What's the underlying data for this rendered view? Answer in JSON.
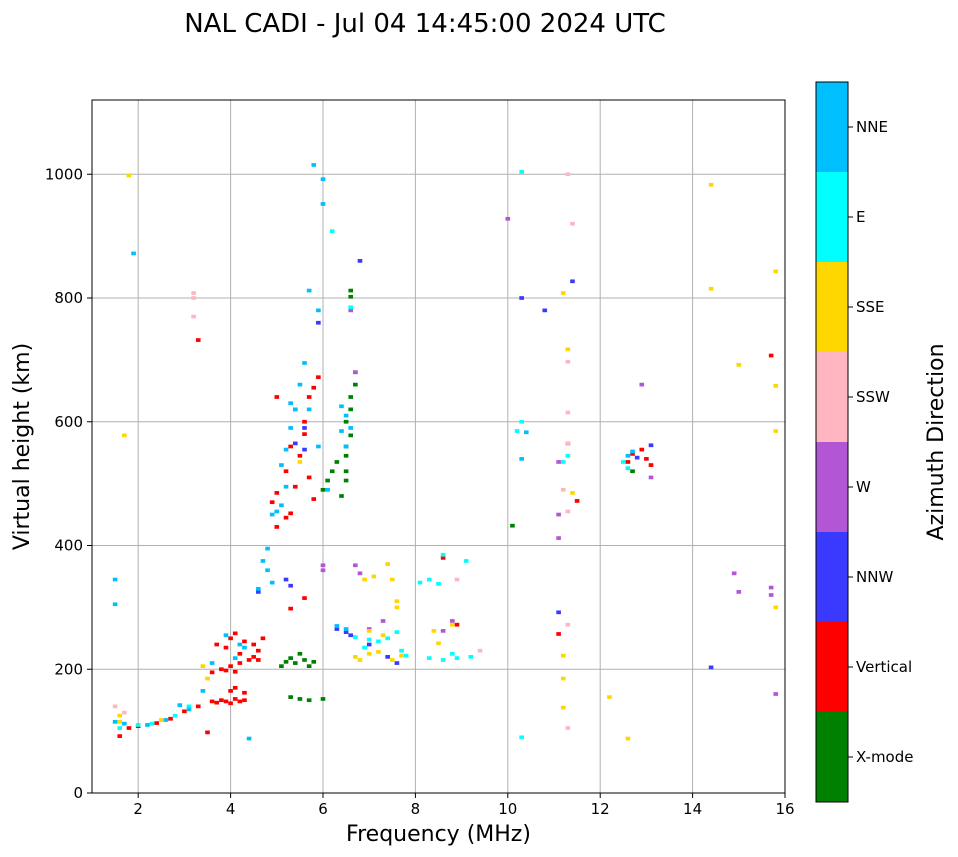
{
  "chart_data": {
    "type": "scatter",
    "title": "NAL CADI - Jul 04 14:45:00 2024 UTC",
    "xlabel": "Frequency (MHz)",
    "ylabel": "Virtual height (km)",
    "xlim": [
      1,
      16
    ],
    "ylim": [
      0,
      1120
    ],
    "xticks": [
      2,
      4,
      6,
      8,
      10,
      12,
      14,
      16
    ],
    "yticks": [
      0,
      200,
      400,
      600,
      800,
      1000
    ],
    "grid": true,
    "colorbar": {
      "label": "Azimuth Direction",
      "categories": [
        {
          "name": "X-mode",
          "color": "#008000"
        },
        {
          "name": "Vertical",
          "color": "#ff0000"
        },
        {
          "name": "NNW",
          "color": "#3a3aff"
        },
        {
          "name": "W",
          "color": "#b356d6"
        },
        {
          "name": "SSW",
          "color": "#ffb6c1"
        },
        {
          "name": "SSE",
          "color": "#ffd700"
        },
        {
          "name": "E",
          "color": "#00ffff"
        },
        {
          "name": "NNE",
          "color": "#00bfff"
        }
      ]
    },
    "bin_width_mhz": 0.1,
    "bin_height_km": 6,
    "series": [
      {
        "name": "Vertical",
        "points": [
          [
            1.6,
            92
          ],
          [
            1.8,
            105
          ],
          [
            2.0,
            108
          ],
          [
            2.4,
            113
          ],
          [
            2.7,
            120
          ],
          [
            3.0,
            132
          ],
          [
            3.3,
            140
          ],
          [
            3.5,
            98
          ],
          [
            3.6,
            148
          ],
          [
            3.7,
            146
          ],
          [
            3.8,
            150
          ],
          [
            3.9,
            148
          ],
          [
            4.0,
            145
          ],
          [
            4.1,
            152
          ],
          [
            4.2,
            148
          ],
          [
            4.3,
            150
          ],
          [
            4.0,
            165
          ],
          [
            4.1,
            170
          ],
          [
            4.3,
            162
          ],
          [
            3.6,
            195
          ],
          [
            3.8,
            200
          ],
          [
            3.9,
            198
          ],
          [
            4.0,
            205
          ],
          [
            4.1,
            196
          ],
          [
            4.2,
            210
          ],
          [
            4.4,
            215
          ],
          [
            4.5,
            220
          ],
          [
            4.6,
            215
          ],
          [
            4.2,
            225
          ],
          [
            3.7,
            240
          ],
          [
            3.9,
            235
          ],
          [
            4.0,
            250
          ],
          [
            4.1,
            258
          ],
          [
            4.3,
            245
          ],
          [
            4.5,
            240
          ],
          [
            4.6,
            230
          ],
          [
            4.7,
            250
          ],
          [
            5.3,
            298
          ],
          [
            5.6,
            315
          ],
          [
            5.0,
            430
          ],
          [
            5.2,
            445
          ],
          [
            5.3,
            452
          ],
          [
            4.9,
            470
          ],
          [
            5.0,
            485
          ],
          [
            5.4,
            495
          ],
          [
            5.2,
            520
          ],
          [
            5.3,
            560
          ],
          [
            5.5,
            545
          ],
          [
            5.6,
            600
          ],
          [
            5.4,
            620
          ],
          [
            5.7,
            640
          ],
          [
            5.0,
            640
          ],
          [
            5.8,
            655
          ],
          [
            5.9,
            672
          ],
          [
            5.6,
            580
          ],
          [
            5.7,
            510
          ],
          [
            5.8,
            475
          ],
          [
            8.6,
            380
          ],
          [
            8.9,
            272
          ],
          [
            11.1,
            257
          ],
          [
            11.5,
            472
          ],
          [
            11.3,
            565
          ],
          [
            12.6,
            535
          ],
          [
            12.7,
            548
          ],
          [
            12.9,
            555
          ],
          [
            13.0,
            540
          ],
          [
            13.1,
            530
          ],
          [
            15.7,
            707
          ],
          [
            3.3,
            732
          ]
        ]
      },
      {
        "name": "X-mode",
        "points": [
          [
            5.1,
            205
          ],
          [
            5.2,
            212
          ],
          [
            5.3,
            218
          ],
          [
            5.4,
            210
          ],
          [
            5.5,
            225
          ],
          [
            5.6,
            215
          ],
          [
            5.7,
            205
          ],
          [
            5.8,
            212
          ],
          [
            5.3,
            155
          ],
          [
            5.5,
            152
          ],
          [
            5.7,
            150
          ],
          [
            6.0,
            152
          ],
          [
            6.5,
            505
          ],
          [
            6.5,
            520
          ],
          [
            6.5,
            545
          ],
          [
            6.5,
            560
          ],
          [
            6.6,
            578
          ],
          [
            6.5,
            600
          ],
          [
            6.6,
            620
          ],
          [
            6.0,
            490
          ],
          [
            6.1,
            505
          ],
          [
            6.2,
            520
          ],
          [
            6.3,
            535
          ],
          [
            6.4,
            480
          ],
          [
            6.6,
            640
          ],
          [
            6.7,
            660
          ],
          [
            6.7,
            680
          ],
          [
            6.6,
            812
          ],
          [
            6.6,
            802
          ],
          [
            10.1,
            432
          ],
          [
            12.7,
            520
          ]
        ]
      },
      {
        "name": "NNW",
        "points": [
          [
            5.6,
            555
          ],
          [
            5.9,
            760
          ],
          [
            6.8,
            860
          ],
          [
            5.2,
            345
          ],
          [
            5.3,
            335
          ],
          [
            4.6,
            325
          ],
          [
            6.3,
            265
          ],
          [
            6.5,
            260
          ],
          [
            6.6,
            255
          ],
          [
            7.0,
            240
          ],
          [
            7.4,
            220
          ],
          [
            7.6,
            210
          ],
          [
            10.3,
            800
          ],
          [
            10.8,
            780
          ],
          [
            11.4,
            827
          ],
          [
            11.1,
            292
          ],
          [
            13.1,
            562
          ],
          [
            12.8,
            542
          ],
          [
            14.4,
            203
          ],
          [
            5.4,
            565
          ],
          [
            5.6,
            590
          ]
        ]
      },
      {
        "name": "W",
        "points": [
          [
            6.0,
            360
          ],
          [
            6.0,
            368
          ],
          [
            6.7,
            368
          ],
          [
            6.8,
            355
          ],
          [
            7.0,
            265
          ],
          [
            7.3,
            278
          ],
          [
            8.8,
            278
          ],
          [
            8.6,
            262
          ],
          [
            12.9,
            660
          ],
          [
            13.1,
            510
          ],
          [
            14.9,
            355
          ],
          [
            15.0,
            325
          ],
          [
            15.7,
            332
          ],
          [
            15.7,
            320
          ],
          [
            15.8,
            160
          ],
          [
            10.0,
            928
          ],
          [
            11.1,
            535
          ],
          [
            11.1,
            450
          ],
          [
            11.1,
            412
          ],
          [
            6.7,
            680
          ],
          [
            6.6,
            780
          ]
        ]
      },
      {
        "name": "SSW",
        "points": [
          [
            3.2,
            808
          ],
          [
            3.2,
            800
          ],
          [
            3.2,
            770
          ],
          [
            1.5,
            140
          ],
          [
            1.7,
            130
          ],
          [
            11.3,
            1000
          ],
          [
            11.4,
            920
          ],
          [
            11.2,
            490
          ],
          [
            11.3,
            455
          ],
          [
            11.3,
            565
          ],
          [
            11.3,
            615
          ],
          [
            11.3,
            697
          ],
          [
            8.9,
            345
          ],
          [
            9.4,
            230
          ],
          [
            11.3,
            272
          ],
          [
            11.3,
            105
          ]
        ]
      },
      {
        "name": "SSE",
        "points": [
          [
            1.6,
            125
          ],
          [
            1.6,
            115
          ],
          [
            1.8,
            998
          ],
          [
            1.7,
            578
          ],
          [
            6.9,
            345
          ],
          [
            7.1,
            350
          ],
          [
            7.4,
            370
          ],
          [
            7.5,
            345
          ],
          [
            6.7,
            220
          ],
          [
            6.8,
            215
          ],
          [
            7.0,
            225
          ],
          [
            7.2,
            228
          ],
          [
            7.5,
            215
          ],
          [
            7.7,
            222
          ],
          [
            7.0,
            262
          ],
          [
            7.3,
            255
          ],
          [
            7.6,
            300
          ],
          [
            7.6,
            310
          ],
          [
            8.4,
            262
          ],
          [
            8.5,
            242
          ],
          [
            8.8,
            272
          ],
          [
            11.2,
            808
          ],
          [
            11.3,
            717
          ],
          [
            11.3,
            545
          ],
          [
            11.4,
            485
          ],
          [
            11.2,
            222
          ],
          [
            11.2,
            185
          ],
          [
            11.2,
            138
          ],
          [
            12.2,
            155
          ],
          [
            12.6,
            88
          ],
          [
            14.4,
            983
          ],
          [
            14.4,
            815
          ],
          [
            15.0,
            692
          ],
          [
            15.8,
            843
          ],
          [
            15.8,
            658
          ],
          [
            15.8,
            585
          ],
          [
            15.8,
            300
          ],
          [
            2.5,
            118
          ],
          [
            3.4,
            205
          ],
          [
            3.5,
            185
          ],
          [
            5.5,
            535
          ]
        ]
      },
      {
        "name": "E",
        "points": [
          [
            6.7,
            252
          ],
          [
            6.9,
            235
          ],
          [
            7.0,
            248
          ],
          [
            7.2,
            245
          ],
          [
            7.4,
            250
          ],
          [
            7.6,
            260
          ],
          [
            7.7,
            230
          ],
          [
            8.1,
            340
          ],
          [
            8.3,
            345
          ],
          [
            8.5,
            338
          ],
          [
            8.8,
            225
          ],
          [
            8.6,
            215
          ],
          [
            8.3,
            218
          ],
          [
            8.9,
            218
          ],
          [
            9.2,
            220
          ],
          [
            7.8,
            222
          ],
          [
            8.6,
            385
          ],
          [
            9.1,
            375
          ],
          [
            10.2,
            585
          ],
          [
            10.3,
            600
          ],
          [
            10.3,
            1004
          ],
          [
            10.3,
            90
          ],
          [
            11.3,
            545
          ],
          [
            11.2,
            535
          ],
          [
            12.5,
            535
          ],
          [
            12.6,
            525
          ],
          [
            1.6,
            105
          ],
          [
            2.0,
            110
          ],
          [
            2.3,
            112
          ],
          [
            2.8,
            125
          ],
          [
            3.1,
            140
          ],
          [
            6.6,
            785
          ],
          [
            6.2,
            908
          ]
        ]
      },
      {
        "name": "NNE",
        "points": [
          [
            1.5,
            345
          ],
          [
            1.5,
            305
          ],
          [
            1.5,
            115
          ],
          [
            1.7,
            112
          ],
          [
            1.9,
            872
          ],
          [
            2.2,
            110
          ],
          [
            2.6,
            118
          ],
          [
            2.9,
            142
          ],
          [
            3.1,
            135
          ],
          [
            3.4,
            165
          ],
          [
            3.6,
            210
          ],
          [
            3.9,
            255
          ],
          [
            4.1,
            218
          ],
          [
            4.2,
            240
          ],
          [
            4.3,
            235
          ],
          [
            4.4,
            88
          ],
          [
            4.6,
            330
          ],
          [
            4.7,
            375
          ],
          [
            4.8,
            395
          ],
          [
            4.8,
            360
          ],
          [
            4.9,
            450
          ],
          [
            5.0,
            455
          ],
          [
            5.1,
            465
          ],
          [
            5.2,
            495
          ],
          [
            5.1,
            530
          ],
          [
            5.2,
            555
          ],
          [
            5.3,
            590
          ],
          [
            5.4,
            620
          ],
          [
            5.3,
            630
          ],
          [
            5.5,
            660
          ],
          [
            5.6,
            695
          ],
          [
            5.7,
            812
          ],
          [
            5.8,
            1015
          ],
          [
            6.0,
            992
          ],
          [
            6.0,
            952
          ],
          [
            5.9,
            780
          ],
          [
            6.4,
            625
          ],
          [
            6.5,
            610
          ],
          [
            6.6,
            590
          ],
          [
            6.4,
            585
          ],
          [
            6.5,
            560
          ],
          [
            6.3,
            270
          ],
          [
            6.5,
            265
          ],
          [
            10.3,
            540
          ],
          [
            10.4,
            583
          ],
          [
            12.6,
            545
          ],
          [
            12.7,
            552
          ],
          [
            4.9,
            340
          ],
          [
            5.7,
            620
          ],
          [
            5.9,
            560
          ],
          [
            6.1,
            490
          ]
        ]
      }
    ]
  }
}
